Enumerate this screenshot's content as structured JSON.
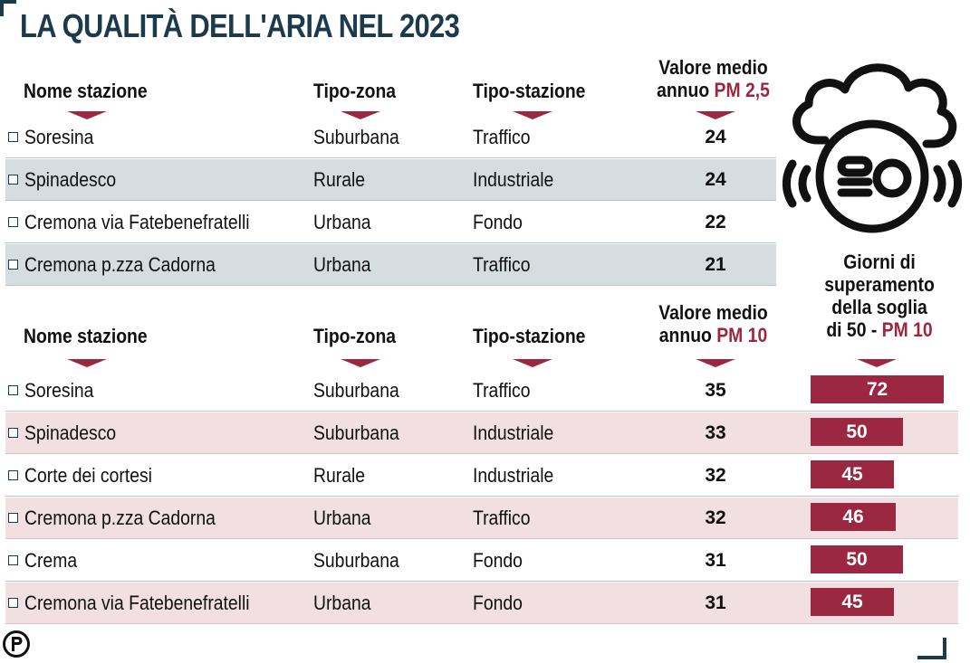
{
  "title": "LA QUALITÀ DELL'ARIA NEL 2023",
  "colors": {
    "accent": "#9b2740",
    "navy": "#1b3a4b",
    "band_gray": "#d5dde0",
    "band_pink": "#f1dfe2"
  },
  "icons": {
    "air_sensor": "cloud-sensor-icon",
    "checkbox": "checkbox-icon",
    "publisher_logo": "p-logo-icon"
  },
  "pm25": {
    "headers": {
      "name": "Nome stazione",
      "zone": "Tipo-zona",
      "station": "Tipo-stazione",
      "value_line1": "Valore medio",
      "value_prefix": "annuo",
      "value_pm": "PM 2,5"
    },
    "rows": [
      {
        "name": "Soresina",
        "zone": "Suburbana",
        "station": "Traffico",
        "value": "24"
      },
      {
        "name": "Spinadesco",
        "zone": "Rurale",
        "station": "Industriale",
        "value": "24"
      },
      {
        "name": "Cremona via Fatebenefratelli",
        "zone": "Urbana",
        "station": "Fondo",
        "value": "22"
      },
      {
        "name": "Cremona p.zza Cadorna",
        "zone": "Urbana",
        "station": "Traffico",
        "value": "21"
      }
    ]
  },
  "pm10": {
    "headers": {
      "name": "Nome stazione",
      "zone": "Tipo-zona",
      "station": "Tipo-stazione",
      "value_line1": "Valore medio",
      "value_prefix": "annuo",
      "value_pm": "PM 10",
      "days_line1": "Giorni di",
      "days_line2": "superamento",
      "days_line3": "della soglia",
      "days_prefix": "di 50 -",
      "days_pm": "PM 10"
    },
    "rows": [
      {
        "name": "Soresina",
        "zone": "Suburbana",
        "station": "Traffico",
        "value": "35",
        "days": "72"
      },
      {
        "name": "Spinadesco",
        "zone": "Suburbana",
        "station": "Industriale",
        "value": "33",
        "days": "50"
      },
      {
        "name": "Corte dei cortesi",
        "zone": "Rurale",
        "station": "Industriale",
        "value": "32",
        "days": "45"
      },
      {
        "name": "Cremona p.zza Cadorna",
        "zone": "Urbana",
        "station": "Traffico",
        "value": "32",
        "days": "46"
      },
      {
        "name": "Crema",
        "zone": "Suburbana",
        "station": "Fondo",
        "value": "31",
        "days": "50"
      },
      {
        "name": "Cremona via Fatebenefratelli",
        "zone": "Urbana",
        "station": "Fondo",
        "value": "31",
        "days": "45"
      }
    ]
  },
  "chart_data": {
    "type": "bar",
    "title": "Giorni di superamento della soglia di 50 - PM 10",
    "categories": [
      "Soresina",
      "Spinadesco",
      "Corte dei cortesi",
      "Cremona p.zza Cadorna",
      "Crema",
      "Cremona via Fatebenefratelli"
    ],
    "values": [
      72,
      50,
      45,
      46,
      50,
      45
    ],
    "xlabel": "",
    "ylabel": "",
    "orientation": "horizontal"
  }
}
